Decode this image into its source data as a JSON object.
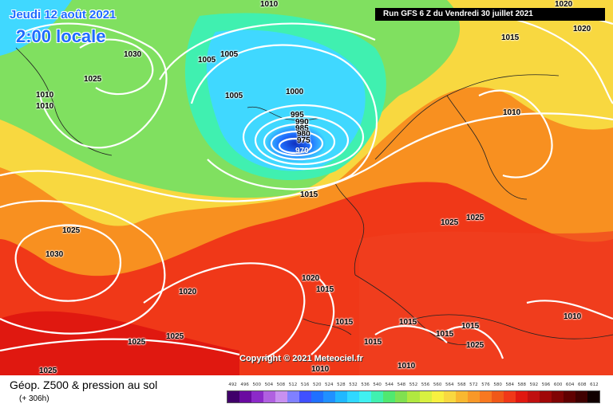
{
  "header": {
    "date_label": "Jeudi 12 août 2021",
    "time_label": "2:00 locale",
    "run_label": "Run GFS 6 Z du Vendredi 30 juillet 2021"
  },
  "map": {
    "copyright": "Copyright © 2021 Meteociel.fr",
    "low_center": "970",
    "isobar_labels": [
      "1010",
      "1025",
      "1030",
      "1015",
      "1010",
      "1010",
      "1005",
      "1005",
      "1020",
      "1015",
      "1010",
      "1000",
      "1005",
      "995",
      "990",
      "985",
      "980",
      "975",
      "1015",
      "1025",
      "1025",
      "1030",
      "1020",
      "1015",
      "1020",
      "1015",
      "1015",
      "1015",
      "1015",
      "1025",
      "1025",
      "1010",
      "1010",
      "1015",
      "1010",
      "1020"
    ],
    "colors": {
      "low_core": "#1030c0",
      "ocean_low": "#40d8ff",
      "mid_green": "#80e060",
      "yellow": "#f8e040",
      "orange": "#f89020",
      "red": "#f02818",
      "isobar": "#ffffff"
    }
  },
  "legend": {
    "title": "Géop. Z500 & pression au sol",
    "forecast_hour": "(+ 306h)",
    "scale_values": [
      "492",
      "496",
      "500",
      "504",
      "508",
      "512",
      "516",
      "520",
      "524",
      "528",
      "532",
      "536",
      "540",
      "544",
      "548",
      "552",
      "556",
      "560",
      "564",
      "568",
      "572",
      "576",
      "580",
      "584",
      "588",
      "592",
      "596",
      "600",
      "604",
      "608",
      "612"
    ],
    "scale_colors": [
      "#40006a",
      "#6a0aa0",
      "#8c2ac8",
      "#b060e0",
      "#c890f0",
      "#8080ff",
      "#4050ff",
      "#2070ff",
      "#2090ff",
      "#20b8ff",
      "#30d8ff",
      "#40f0f0",
      "#40f0b0",
      "#50e870",
      "#80e050",
      "#b0e840",
      "#d8f040",
      "#f8f040",
      "#f8d840",
      "#f8b830",
      "#f89828",
      "#f87820",
      "#f05818",
      "#f03818",
      "#e01810",
      "#c01010",
      "#a00808",
      "#800404",
      "#600000",
      "#400000",
      "#100000"
    ]
  }
}
